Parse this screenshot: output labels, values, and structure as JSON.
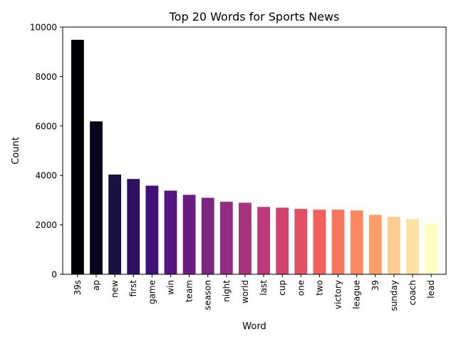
{
  "chart_data": {
    "type": "bar",
    "title": "Top 20 Words for Sports News",
    "xlabel": "Word",
    "ylabel": "Count",
    "ylim": [
      0,
      10000
    ],
    "yticks": [
      0,
      2000,
      4000,
      6000,
      8000,
      10000
    ],
    "yticklabels": [
      "0",
      "2000",
      "4000",
      "6000",
      "8000",
      "10000"
    ],
    "grid": false,
    "legend": "none",
    "categories": [
      "39s",
      "ap",
      "new",
      "first",
      "game",
      "win",
      "team",
      "season",
      "night",
      "world",
      "last",
      "cup",
      "one",
      "two",
      "victory",
      "league",
      "39",
      "sunday",
      "coach",
      "lead"
    ],
    "values": [
      9500,
      6200,
      4050,
      3870,
      3600,
      3400,
      3230,
      3110,
      2950,
      2910,
      2740,
      2710,
      2660,
      2630,
      2630,
      2600,
      2420,
      2340,
      2250,
      2060
    ],
    "colors": [
      "#000004",
      "#07061c",
      "#1a1042",
      "#2d1160",
      "#410f75",
      "#57157e",
      "#6a1c81",
      "#7e2482",
      "#932b80",
      "#a8327d",
      "#bd3977",
      "#d1426f",
      "#e34e65",
      "#f1605d",
      "#f8765c",
      "#fc8961",
      "#fe9f6d",
      "#fdcd90",
      "#fee2a4",
      "#fcfdbf"
    ],
    "bar_edge_color": "#ffffff"
  }
}
